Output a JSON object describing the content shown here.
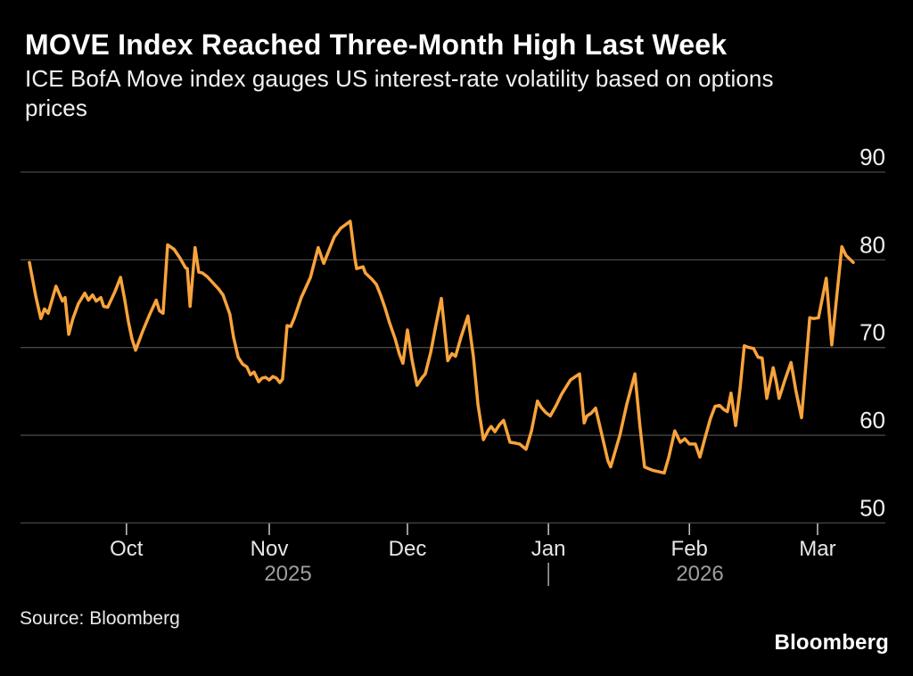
{
  "header": {
    "title": "MOVE Index Reached Three-Month High Last Week",
    "subtitle_lines": [
      "ICE BofA Move index gauges US interest-rate volatility based on options",
      "prices"
    ]
  },
  "footer": {
    "source": "Source: Bloomberg",
    "brand": "Bloomberg"
  },
  "colors": {
    "background": "#000000",
    "line": "#F8A33C",
    "grid": "#464646",
    "tick": "#bcbcbc",
    "y_label": "#f0f0f0",
    "month_label": "#e6e6e6",
    "year_label": "#9e9e9e",
    "year_divider": "#9e9e9e",
    "title": "#ffffff",
    "subtitle": "#f2f2f2",
    "source": "#e9e9e9",
    "brand": "#ffffff"
  },
  "chart_data": {
    "type": "line",
    "title": "MOVE Index Reached Three-Month High Last Week",
    "subtitle": "ICE BofA Move index gauges US interest-rate volatility based on options prices",
    "grid": "horizontal",
    "legend": "none",
    "y_axis_side": "right",
    "y_ticks": [
      90,
      80,
      70,
      60,
      50
    ],
    "ylim": [
      48,
      92
    ],
    "x_unit": "days (approx daily values, mid-Sep 2025 to early-Mar 2026)",
    "x_ticks": [
      {
        "label": "Oct",
        "t": 21.2
      },
      {
        "label": "Nov",
        "t": 52.4
      },
      {
        "label": "Dec",
        "t": 82.6
      },
      {
        "label": "Jan",
        "t": 113.4
      },
      {
        "label": "Feb",
        "t": 144.2
      },
      {
        "label": "Mar",
        "t": 172.2
      }
    ],
    "year_labels": [
      {
        "label": "2025",
        "t": 56.5
      },
      {
        "label": "2026",
        "t": 146.5
      }
    ],
    "year_divider_t": 113.4,
    "series": [
      {
        "name": "ICE BofA MOVE Index",
        "color": "#F8A33C",
        "points": [
          [
            0,
            79.7
          ],
          [
            1.4,
            75.8
          ],
          [
            2.5,
            73.3
          ],
          [
            3.3,
            74.4
          ],
          [
            4.1,
            73.9
          ],
          [
            5.8,
            77.0
          ],
          [
            7.2,
            75.3
          ],
          [
            7.8,
            75.7
          ],
          [
            8.6,
            71.5
          ],
          [
            9.5,
            73.3
          ],
          [
            10.7,
            75.0
          ],
          [
            12.1,
            76.2
          ],
          [
            12.9,
            75.4
          ],
          [
            13.8,
            76.0
          ],
          [
            14.6,
            75.3
          ],
          [
            15.6,
            75.7
          ],
          [
            16.2,
            74.7
          ],
          [
            17.1,
            74.6
          ],
          [
            18.7,
            76.4
          ],
          [
            19.9,
            78.0
          ],
          [
            20.8,
            75.5
          ],
          [
            21.6,
            73.0
          ],
          [
            22.4,
            71.0
          ],
          [
            23.2,
            69.7
          ],
          [
            24.7,
            71.8
          ],
          [
            26.3,
            73.8
          ],
          [
            27.7,
            75.4
          ],
          [
            28.4,
            74.2
          ],
          [
            29.2,
            73.9
          ],
          [
            30.2,
            81.7
          ],
          [
            31.6,
            81.2
          ],
          [
            32.9,
            80.2
          ],
          [
            34.1,
            79.1
          ],
          [
            34.5,
            79.0
          ],
          [
            35.1,
            74.7
          ],
          [
            36.2,
            81.4
          ],
          [
            37,
            78.6
          ],
          [
            37.8,
            78.5
          ],
          [
            38.8,
            78.1
          ],
          [
            39.7,
            77.6
          ],
          [
            41.3,
            76.7
          ],
          [
            42.3,
            76.0
          ],
          [
            43.8,
            73.8
          ],
          [
            44.6,
            71.2
          ],
          [
            45.6,
            68.9
          ],
          [
            46.6,
            68.1
          ],
          [
            47.5,
            67.8
          ],
          [
            48.3,
            66.9
          ],
          [
            49.1,
            67.2
          ],
          [
            50.1,
            66.1
          ],
          [
            50.8,
            66.5
          ],
          [
            51.6,
            66.6
          ],
          [
            52.4,
            66.3
          ],
          [
            53.2,
            66.7
          ],
          [
            54,
            66.5
          ],
          [
            54.7,
            66.0
          ],
          [
            55.3,
            66.4
          ],
          [
            55.6,
            68.2
          ],
          [
            56.3,
            72.5
          ],
          [
            57.1,
            72.4
          ],
          [
            57.9,
            73.4
          ],
          [
            59.4,
            75.7
          ],
          [
            61.4,
            78.0
          ],
          [
            63.1,
            81.4
          ],
          [
            64.3,
            79.6
          ],
          [
            66.6,
            82.6
          ],
          [
            68,
            83.6
          ],
          [
            70.1,
            84.4
          ],
          [
            71.1,
            80.2
          ],
          [
            71.5,
            79.0
          ],
          [
            72.9,
            79.2
          ],
          [
            73.4,
            78.5
          ],
          [
            74.8,
            77.8
          ],
          [
            75.8,
            77.2
          ],
          [
            76.8,
            75.9
          ],
          [
            77.7,
            74.5
          ],
          [
            78.7,
            72.8
          ],
          [
            79.9,
            71.0
          ],
          [
            80.8,
            69.3
          ],
          [
            81.6,
            68.2
          ],
          [
            82.6,
            72.0
          ],
          [
            83.6,
            68.6
          ],
          [
            84.7,
            65.7
          ],
          [
            85.7,
            66.5
          ],
          [
            86.5,
            67.0
          ],
          [
            87.7,
            69.5
          ],
          [
            88.8,
            72.5
          ],
          [
            90,
            75.6
          ],
          [
            91.4,
            68.5
          ],
          [
            92.3,
            69.3
          ],
          [
            93.1,
            69.0
          ],
          [
            94.3,
            71.2
          ],
          [
            95.8,
            73.6
          ],
          [
            97,
            69.0
          ],
          [
            98,
            63.5
          ],
          [
            99.2,
            59.5
          ],
          [
            100.3,
            60.6
          ],
          [
            100.9,
            61.0
          ],
          [
            101.7,
            60.4
          ],
          [
            102.7,
            61.2
          ],
          [
            103.6,
            61.7
          ],
          [
            105,
            59.2
          ],
          [
            106.2,
            59.1
          ],
          [
            107.1,
            59.0
          ],
          [
            108.5,
            58.4
          ],
          [
            109.7,
            60.5
          ],
          [
            111,
            63.9
          ],
          [
            111.8,
            63.2
          ],
          [
            112.8,
            62.6
          ],
          [
            113.8,
            62.2
          ],
          [
            115.1,
            63.4
          ],
          [
            116.3,
            64.7
          ],
          [
            118.2,
            66.3
          ],
          [
            120.2,
            67.0
          ],
          [
            121.2,
            61.4
          ],
          [
            121.8,
            62.2
          ],
          [
            122.7,
            62.5
          ],
          [
            123.7,
            63.1
          ],
          [
            125.1,
            60.0
          ],
          [
            126.4,
            57.1
          ],
          [
            127,
            56.4
          ],
          [
            129,
            60.0
          ],
          [
            130.5,
            63.5
          ],
          [
            132.3,
            67.0
          ],
          [
            133.4,
            61.0
          ],
          [
            134.4,
            56.4
          ],
          [
            135.2,
            56.2
          ],
          [
            136.2,
            56.0
          ],
          [
            137.1,
            55.9
          ],
          [
            138.7,
            55.7
          ],
          [
            139.7,
            57.5
          ],
          [
            141,
            60.5
          ],
          [
            142.2,
            59.2
          ],
          [
            143.2,
            59.6
          ],
          [
            144.2,
            59.0
          ],
          [
            145.5,
            59.0
          ],
          [
            146.5,
            57.5
          ],
          [
            147.5,
            59.5
          ],
          [
            148.8,
            61.9
          ],
          [
            149.8,
            63.3
          ],
          [
            150.8,
            63.4
          ],
          [
            151.8,
            62.9
          ],
          [
            152.5,
            62.7
          ],
          [
            153.3,
            64.8
          ],
          [
            154.3,
            61.1
          ],
          [
            155.3,
            65.5
          ],
          [
            156.2,
            70.2
          ],
          [
            157.2,
            70.0
          ],
          [
            158.2,
            69.9
          ],
          [
            159.2,
            68.9
          ],
          [
            160.1,
            68.8
          ],
          [
            161.1,
            64.2
          ],
          [
            162.5,
            67.7
          ],
          [
            163.2,
            66.0
          ],
          [
            163.8,
            64.2
          ],
          [
            165,
            66.2
          ],
          [
            166.4,
            68.3
          ],
          [
            167.5,
            65.0
          ],
          [
            168.7,
            62.0
          ],
          [
            170.5,
            73.4
          ],
          [
            171.4,
            73.3
          ],
          [
            172.4,
            73.4
          ],
          [
            174.1,
            77.9
          ],
          [
            175.3,
            70.3
          ],
          [
            177.5,
            81.5
          ],
          [
            178.4,
            80.5
          ],
          [
            180,
            79.7
          ]
        ]
      }
    ]
  }
}
